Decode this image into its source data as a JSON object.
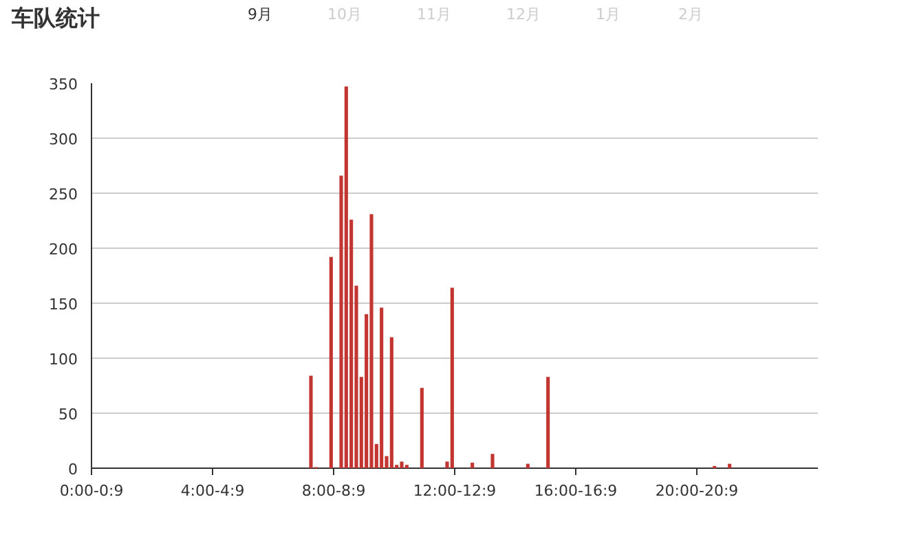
{
  "chart_data": {
    "type": "bar",
    "title": "车队统计",
    "legend": "top",
    "grid": "y",
    "ylim": [
      0,
      350
    ],
    "yticks": [
      0,
      50,
      100,
      150,
      200,
      250,
      300,
      350
    ],
    "categories": [
      "0:00-0:9",
      null,
      null,
      null,
      null,
      null,
      null,
      null,
      null,
      null,
      null,
      null,
      null,
      null,
      null,
      null,
      null,
      null,
      null,
      null,
      null,
      null,
      null,
      null,
      "4:00-4:9",
      null,
      null,
      null,
      null,
      null,
      null,
      null,
      null,
      null,
      null,
      null,
      null,
      null,
      null,
      null,
      null,
      null,
      null,
      null,
      null,
      null,
      null,
      null,
      "8:00-8:9",
      null,
      null,
      null,
      null,
      null,
      null,
      null,
      null,
      null,
      null,
      null,
      null,
      null,
      null,
      null,
      null,
      null,
      null,
      null,
      null,
      null,
      null,
      null,
      "12:00-12:9",
      null,
      null,
      null,
      null,
      null,
      null,
      null,
      null,
      null,
      null,
      null,
      null,
      null,
      null,
      null,
      null,
      null,
      null,
      null,
      null,
      null,
      null,
      null,
      "16:00-16:9",
      null,
      null,
      null,
      null,
      null,
      null,
      null,
      null,
      null,
      null,
      null,
      null,
      null,
      null,
      null,
      null,
      null,
      null,
      null,
      null,
      null,
      null,
      null,
      "20:00-20:9",
      null,
      null,
      null,
      null,
      null,
      null,
      null,
      null,
      null,
      null,
      null,
      null,
      null,
      null,
      null,
      null,
      null,
      null,
      null,
      null,
      null,
      null,
      null
    ],
    "series": [
      {
        "name": "9月",
        "color": "#c23531",
        "values": [
          0,
          0,
          0,
          0,
          0,
          0,
          0,
          0,
          0,
          0,
          0,
          0,
          0,
          0,
          0,
          0,
          0,
          0,
          0,
          0,
          0,
          0,
          0,
          0,
          0,
          0,
          0,
          0,
          0,
          0,
          0,
          0,
          0,
          0,
          0,
          0,
          0,
          0,
          0,
          0,
          0,
          0,
          0,
          84,
          1,
          0,
          0,
          192,
          0,
          266,
          347,
          226,
          166,
          83,
          140,
          231,
          22,
          146,
          11,
          119,
          3,
          6,
          3,
          0,
          0,
          73,
          0,
          0,
          0,
          0,
          6,
          164,
          0,
          0,
          0,
          5,
          0,
          0,
          0,
          13,
          0,
          0,
          0,
          0,
          0,
          0,
          4,
          0,
          0,
          0,
          83,
          0,
          0,
          0,
          0,
          0,
          0,
          0,
          0,
          0,
          0,
          0,
          0,
          0,
          0,
          0,
          0,
          0,
          0,
          0,
          0,
          0,
          0,
          0,
          0,
          0,
          0,
          0,
          0,
          0,
          0,
          0,
          0,
          2,
          0,
          0,
          4,
          0,
          0,
          0,
          0,
          0,
          0,
          0,
          0,
          0,
          0,
          0,
          0,
          0,
          0,
          0,
          0,
          0
        ]
      },
      {
        "name": "10月",
        "color": "#cccccc",
        "values": [
          null,
          null,
          null,
          null,
          null,
          null,
          null,
          null,
          null,
          null,
          null,
          null,
          null,
          null,
          null,
          null,
          null,
          null,
          null,
          null,
          null,
          null,
          null,
          null,
          null,
          null,
          null,
          null,
          null,
          null,
          null,
          null,
          null,
          null,
          null,
          null,
          null,
          null,
          null,
          null,
          null,
          null,
          null,
          null,
          null,
          null,
          null,
          null,
          null,
          null,
          null,
          null,
          null,
          null,
          null,
          null,
          null,
          null,
          null,
          null,
          null,
          null,
          null,
          null,
          null,
          null,
          null,
          null,
          null,
          null,
          null,
          null,
          null,
          null,
          null,
          null,
          null,
          null,
          null,
          null,
          null,
          null,
          null,
          null,
          null,
          null,
          null,
          null,
          null,
          null,
          null,
          null,
          null,
          null,
          null,
          null,
          null,
          null,
          null,
          null,
          null,
          null,
          null,
          null,
          null,
          null,
          null,
          null,
          null,
          null,
          null,
          null,
          null,
          null,
          null,
          null,
          null,
          null,
          null,
          null,
          null,
          null,
          null,
          null,
          null,
          null,
          null,
          null,
          null,
          null,
          null,
          null,
          null,
          null,
          null,
          null,
          null,
          null,
          null,
          null,
          null,
          null,
          null,
          null
        ]
      },
      {
        "name": "11月",
        "color": "#cccccc",
        "values": [
          null,
          null,
          null,
          null,
          null,
          null,
          null,
          null,
          null,
          null,
          null,
          null,
          null,
          null,
          null,
          null,
          null,
          null,
          null,
          null,
          null,
          null,
          null,
          null,
          null,
          null,
          null,
          null,
          null,
          null,
          null,
          null,
          null,
          null,
          null,
          null,
          null,
          null,
          null,
          null,
          null,
          null,
          null,
          null,
          null,
          null,
          null,
          null,
          null,
          null,
          null,
          null,
          null,
          null,
          null,
          null,
          null,
          null,
          null,
          null,
          null,
          null,
          null,
          null,
          null,
          null,
          null,
          null,
          null,
          null,
          null,
          null,
          null,
          null,
          null,
          null,
          null,
          null,
          null,
          null,
          null,
          null,
          null,
          null,
          null,
          null,
          null,
          null,
          null,
          null,
          null,
          null,
          null,
          null,
          null,
          null,
          null,
          null,
          null,
          null,
          null,
          null,
          null,
          null,
          null,
          null,
          null,
          null,
          null,
          null,
          null,
          null,
          null,
          null,
          null,
          null,
          null,
          null,
          null,
          null,
          null,
          null,
          null,
          null,
          null,
          null,
          null,
          null,
          null,
          null,
          null,
          null,
          null,
          null,
          null,
          null,
          null,
          null,
          null,
          null,
          null,
          null,
          null,
          null
        ]
      },
      {
        "name": "12月",
        "color": "#cccccc",
        "values": [
          null,
          null,
          null,
          null,
          null,
          null,
          null,
          null,
          null,
          null,
          null,
          null,
          null,
          null,
          null,
          null,
          null,
          null,
          null,
          null,
          null,
          null,
          null,
          null,
          null,
          null,
          null,
          null,
          null,
          null,
          null,
          null,
          null,
          null,
          null,
          null,
          null,
          null,
          null,
          null,
          null,
          null,
          null,
          null,
          null,
          null,
          null,
          null,
          null,
          null,
          null,
          null,
          null,
          null,
          null,
          null,
          null,
          null,
          null,
          null,
          null,
          null,
          null,
          null,
          null,
          null,
          null,
          null,
          null,
          null,
          null,
          null,
          null,
          null,
          null,
          null,
          null,
          null,
          null,
          null,
          null,
          null,
          null,
          null,
          null,
          null,
          null,
          null,
          null,
          null,
          null,
          null,
          null,
          null,
          null,
          null,
          null,
          null,
          null,
          null,
          null,
          null,
          null,
          null,
          null,
          null,
          null,
          null,
          null,
          null,
          null,
          null,
          null,
          null,
          null,
          null,
          null,
          null,
          null,
          null,
          null,
          null,
          null,
          null,
          null,
          null,
          null,
          null,
          null,
          null,
          null,
          null,
          null,
          null,
          null,
          null,
          null,
          null,
          null,
          null,
          null,
          null,
          null,
          null
        ]
      },
      {
        "name": "1月",
        "color": "#cccccc",
        "values": [
          null,
          null,
          null,
          null,
          null,
          null,
          null,
          null,
          null,
          null,
          null,
          null,
          null,
          null,
          null,
          null,
          null,
          null,
          null,
          null,
          null,
          null,
          null,
          null,
          null,
          null,
          null,
          null,
          null,
          null,
          null,
          null,
          null,
          null,
          null,
          null,
          null,
          null,
          null,
          null,
          null,
          null,
          null,
          null,
          null,
          null,
          null,
          null,
          null,
          null,
          null,
          null,
          null,
          null,
          null,
          null,
          null,
          null,
          null,
          null,
          null,
          null,
          null,
          null,
          null,
          null,
          null,
          null,
          null,
          null,
          null,
          null,
          null,
          null,
          null,
          null,
          null,
          null,
          null,
          null,
          null,
          null,
          null,
          null,
          null,
          null,
          null,
          null,
          null,
          null,
          null,
          null,
          null,
          null,
          null,
          null,
          null,
          null,
          null,
          null,
          null,
          null,
          null,
          null,
          null,
          null,
          null,
          null,
          null,
          null,
          null,
          null,
          null,
          null,
          null,
          null,
          null,
          null,
          null,
          null,
          null,
          null,
          null,
          null,
          null,
          null,
          null,
          null,
          null,
          null,
          null,
          null,
          null,
          null,
          null,
          null,
          null,
          null,
          null,
          null,
          null,
          null,
          null,
          null
        ]
      },
      {
        "name": "2月",
        "color": "#cccccc",
        "values": [
          null,
          null,
          null,
          null,
          null,
          null,
          null,
          null,
          null,
          null,
          null,
          null,
          null,
          null,
          null,
          null,
          null,
          null,
          null,
          null,
          null,
          null,
          null,
          null,
          null,
          null,
          null,
          null,
          null,
          null,
          null,
          null,
          null,
          null,
          null,
          null,
          null,
          null,
          null,
          null,
          null,
          null,
          null,
          null,
          null,
          null,
          null,
          null,
          null,
          null,
          null,
          null,
          null,
          null,
          null,
          null,
          null,
          null,
          null,
          null,
          null,
          null,
          null,
          null,
          null,
          null,
          null,
          null,
          null,
          null,
          null,
          null,
          null,
          null,
          null,
          null,
          null,
          null,
          null,
          null,
          null,
          null,
          null,
          null,
          null,
          null,
          null,
          null,
          null,
          null,
          null,
          null,
          null,
          null,
          null,
          null,
          null,
          null,
          null,
          null,
          null,
          null,
          null,
          null,
          null,
          null,
          null,
          null,
          null,
          null,
          null,
          null,
          null,
          null,
          null,
          null,
          null,
          null,
          null,
          null,
          null,
          null,
          null,
          null,
          null,
          null,
          null,
          null,
          null,
          null,
          null,
          null,
          null,
          null,
          null,
          null,
          null,
          null,
          null,
          null,
          null,
          null,
          null,
          null
        ]
      }
    ]
  }
}
